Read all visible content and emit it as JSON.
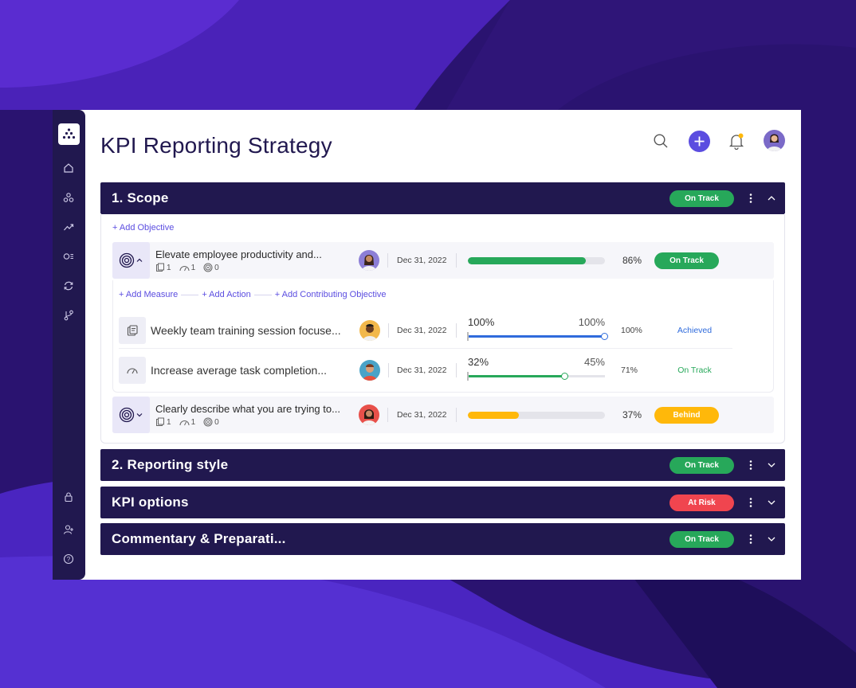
{
  "colors": {
    "brand_navy": "#21184f",
    "accent_purple": "#5b4de0",
    "green": "#27a85a",
    "red": "#f0454f",
    "yellow": "#ffb80a",
    "blue": "#2f6bdc"
  },
  "sidebar": {
    "icons": [
      "home-icon",
      "org-chart-icon",
      "trending-icon",
      "okr-list-icon",
      "refresh-icon",
      "branch-icon",
      "lock-icon",
      "add-user-icon",
      "help-icon"
    ]
  },
  "header": {
    "title": "KPI Reporting Strategy",
    "icons": [
      "search-icon",
      "add-icon",
      "bell-icon",
      "user-avatar"
    ]
  },
  "sections": [
    {
      "title": "1. Scope",
      "status": "On Track",
      "expanded": true
    },
    {
      "title": "2. Reporting style",
      "status": "On Track",
      "expanded": false
    },
    {
      "title": "KPI options",
      "status": "At Risk",
      "expanded": false
    },
    {
      "title": "Commentary & Preparati...",
      "status": "On Track",
      "expanded": false
    }
  ],
  "scope": {
    "add_objective": "+ Add Objective",
    "objectives": [
      {
        "title": "Elevate employee productivity and...",
        "counts": [
          "1",
          "1",
          "0"
        ],
        "date": "Dec 31, 2022",
        "progress": 86,
        "progress_label": "86%",
        "status": "On Track"
      },
      {
        "title": "Clearly describe what you are trying to...",
        "counts": [
          "1",
          "1",
          "0"
        ],
        "date": "Dec 31, 2022",
        "progress": 37,
        "progress_label": "37%",
        "status": "Behind"
      }
    ],
    "links": [
      "+ Add Measure",
      "+ Add Action",
      "+ Add Contributing Objective"
    ],
    "measures": [
      {
        "title": "Weekly team training session focuse...",
        "date": "Dec 31, 2022",
        "current": "100%",
        "target": "100%",
        "progress": 100,
        "pct": "100%",
        "status": "Achieved"
      },
      {
        "title": "Increase average task completion...",
        "date": "Dec 31, 2022",
        "current": "32%",
        "target": "45%",
        "progress": 71,
        "pct": "71%",
        "status": "On Track"
      }
    ]
  }
}
